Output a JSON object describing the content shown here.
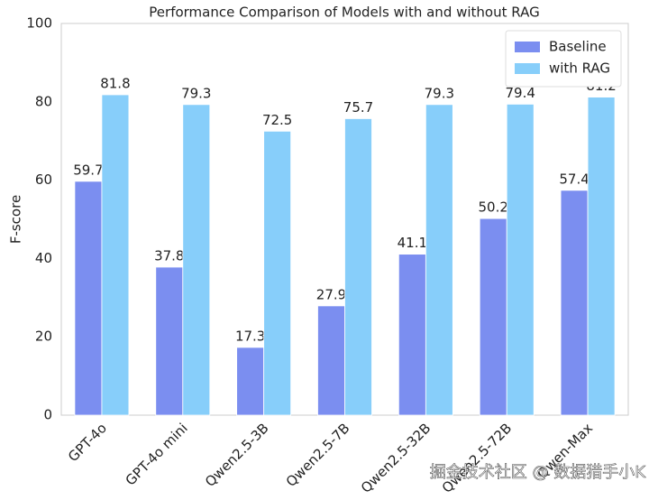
{
  "chart_data": {
    "type": "grouped-bar",
    "title": "Performance Comparison of Models with and without RAG",
    "y_label": "F-score",
    "categories": [
      "GPT-4o",
      "GPT-4o mini",
      "Qwen2.5-3B",
      "Qwen2.5-7B",
      "Qwen2.5-32B",
      "Qwen2.5-72B",
      "Qwen-Max"
    ],
    "series": [
      {
        "name": "Baseline",
        "color": "#7b8ef0",
        "values": [
          59.7,
          37.8,
          17.3,
          27.9,
          41.1,
          50.2,
          57.4
        ]
      },
      {
        "name": "with RAG",
        "color": "#87cefa",
        "values": [
          81.8,
          79.3,
          72.5,
          75.7,
          79.3,
          79.4,
          81.2
        ]
      }
    ],
    "ylim": [
      0,
      100
    ],
    "yticks": [
      0,
      20,
      40,
      60,
      80,
      100
    ],
    "grid": false,
    "legend": "upper right"
  },
  "watermark": "掘金技术社区 @ 数据猎手小K"
}
